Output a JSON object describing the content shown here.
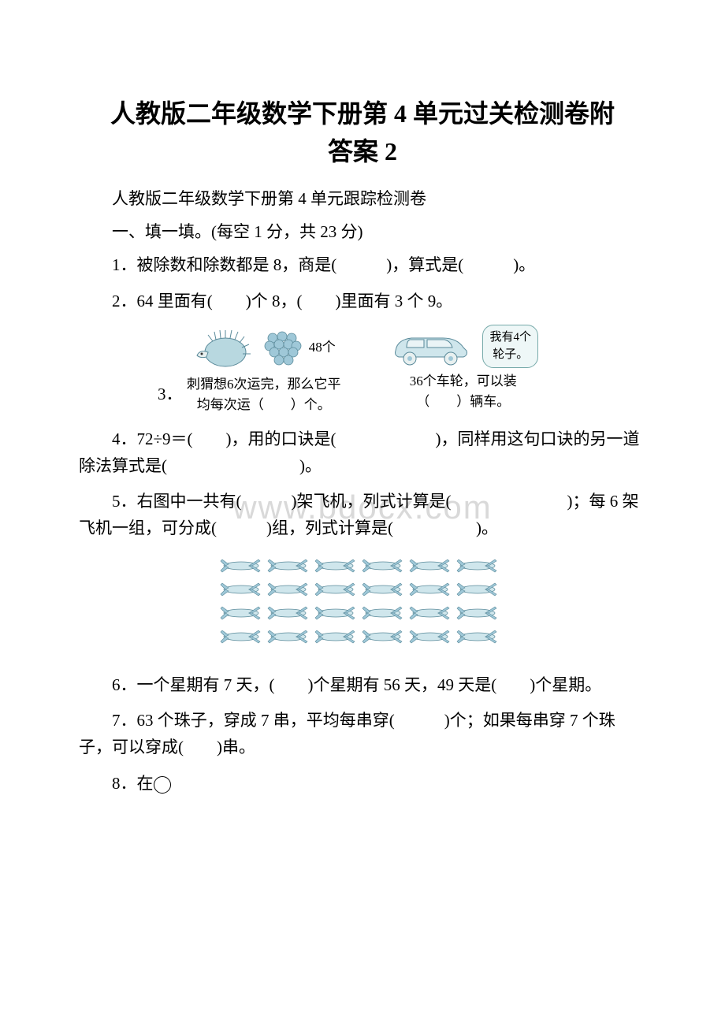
{
  "title_line1": "人教版二年级数学下册第 4 单元过关检测卷附",
  "title_line2": "答案 2",
  "subtitle": "人教版二年级数学下册第 4 单元跟踪检测卷",
  "section1": "一、填一填。(每空 1 分，共 23 分)",
  "q1": "1．被除数和除数都是 8，商是(　　　)，算式是(　　　)。",
  "q2": "2．64 里面有(　　)个 8，(　　)里面有 3 个 9。",
  "q3_label": "3．",
  "q3_fig1_top": "48个",
  "q3_fig1_line1": "刺猬想6次运完，那么它平",
  "q3_fig1_line2": "均每次运（　　）个。",
  "q3_fig2_bubble1": "我有4个",
  "q3_fig2_bubble2": "轮子。",
  "q3_fig2_line1": "36个车轮，可以装",
  "q3_fig2_line2": "（　　）辆车。",
  "q4": "4．72÷9＝(　　)，用的口诀是(　　　　　　)，同样用这句口诀的另一道除法算式是(　　　　　　　　)。",
  "q5": "5．右图中一共有(　　　)架飞机，列式计算是(　　　　　　　)；每 6 架飞机一组，可分成(　　　)组，列式计算是(　　　　　)。",
  "q6": "6．一个星期有 7 天，(　　)个星期有 56 天，49 天是(　　)个星期。",
  "q7": "7．63 个珠子，穿成 7 串，平均每串穿(　　　)个；如果每串穿 7 个珠子，可以穿成(　　)串。",
  "q8": "8．在",
  "watermark": "www.bdocx.com",
  "colors": {
    "text": "#000000",
    "watermark": "#d9d9d9",
    "figure_blue": "#9fc8d8",
    "figure_dark": "#5a8a9a",
    "bubble_bg": "#eef7f7",
    "bubble_border": "#7aa0a0"
  },
  "plane_grid": {
    "rows": 4,
    "cols": 6
  }
}
